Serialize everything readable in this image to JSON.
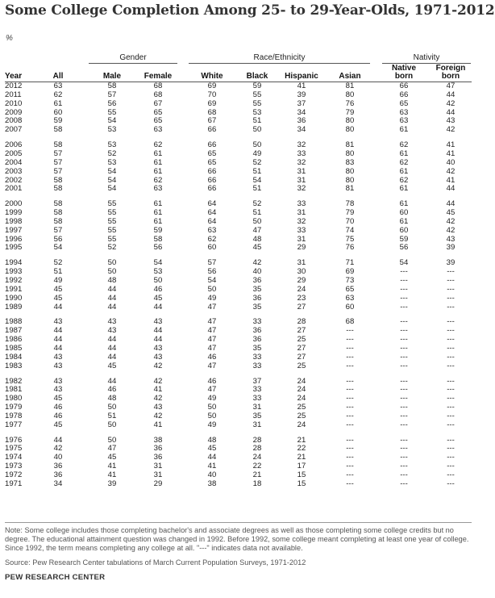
{
  "title": "Some College Completion Among 25- to 29-Year-Olds, 1971-2012",
  "unit": "%",
  "groups": {
    "gender": "Gender",
    "race": "Race/Ethnicity",
    "nativity": "Nativity"
  },
  "headers": {
    "year": "Year",
    "all": "All",
    "male": "Male",
    "female": "Female",
    "white": "White",
    "black": "Black",
    "hispanic": "Hispanic",
    "asian": "Asian",
    "native_line1": "Native",
    "native_line2": "born",
    "foreign_line1": "Foreign",
    "foreign_line2": "born"
  },
  "rows": [
    [
      "2012",
      "63",
      "58",
      "68",
      "69",
      "59",
      "41",
      "81",
      "66",
      "47"
    ],
    [
      "2011",
      "62",
      "57",
      "68",
      "70",
      "55",
      "39",
      "80",
      "66",
      "44"
    ],
    [
      "2010",
      "61",
      "56",
      "67",
      "69",
      "55",
      "37",
      "76",
      "65",
      "42"
    ],
    [
      "2009",
      "60",
      "55",
      "65",
      "68",
      "53",
      "34",
      "79",
      "63",
      "44"
    ],
    [
      "2008",
      "59",
      "54",
      "65",
      "67",
      "51",
      "36",
      "80",
      "63",
      "43"
    ],
    [
      "2007",
      "58",
      "53",
      "63",
      "66",
      "50",
      "34",
      "80",
      "61",
      "42"
    ],
    [
      "2006",
      "58",
      "53",
      "62",
      "66",
      "50",
      "32",
      "81",
      "62",
      "41"
    ],
    [
      "2005",
      "57",
      "52",
      "61",
      "65",
      "49",
      "33",
      "80",
      "61",
      "41"
    ],
    [
      "2004",
      "57",
      "53",
      "61",
      "65",
      "52",
      "32",
      "83",
      "62",
      "40"
    ],
    [
      "2003",
      "57",
      "54",
      "61",
      "66",
      "51",
      "31",
      "80",
      "61",
      "42"
    ],
    [
      "2002",
      "58",
      "54",
      "62",
      "66",
      "54",
      "31",
      "80",
      "62",
      "41"
    ],
    [
      "2001",
      "58",
      "54",
      "63",
      "66",
      "51",
      "32",
      "81",
      "61",
      "44"
    ],
    [
      "2000",
      "58",
      "55",
      "61",
      "64",
      "52",
      "33",
      "78",
      "61",
      "44"
    ],
    [
      "1999",
      "58",
      "55",
      "61",
      "64",
      "51",
      "31",
      "79",
      "60",
      "45"
    ],
    [
      "1998",
      "58",
      "55",
      "61",
      "64",
      "50",
      "32",
      "70",
      "61",
      "42"
    ],
    [
      "1997",
      "57",
      "55",
      "59",
      "63",
      "47",
      "33",
      "74",
      "60",
      "42"
    ],
    [
      "1996",
      "56",
      "55",
      "58",
      "62",
      "48",
      "31",
      "75",
      "59",
      "43"
    ],
    [
      "1995",
      "54",
      "52",
      "56",
      "60",
      "45",
      "29",
      "76",
      "56",
      "39"
    ],
    [
      "1994",
      "52",
      "50",
      "54",
      "57",
      "42",
      "31",
      "71",
      "54",
      "39"
    ],
    [
      "1993",
      "51",
      "50",
      "53",
      "56",
      "40",
      "30",
      "69",
      "---",
      "---"
    ],
    [
      "1992",
      "49",
      "48",
      "50",
      "54",
      "36",
      "29",
      "73",
      "---",
      "---"
    ],
    [
      "1991",
      "45",
      "44",
      "46",
      "50",
      "35",
      "24",
      "65",
      "---",
      "---"
    ],
    [
      "1990",
      "45",
      "44",
      "45",
      "49",
      "36",
      "23",
      "63",
      "---",
      "---"
    ],
    [
      "1989",
      "44",
      "44",
      "44",
      "47",
      "35",
      "27",
      "60",
      "---",
      "---"
    ],
    [
      "1988",
      "43",
      "43",
      "43",
      "47",
      "33",
      "28",
      "68",
      "---",
      "---"
    ],
    [
      "1987",
      "44",
      "43",
      "44",
      "47",
      "36",
      "27",
      "---",
      "---",
      "---"
    ],
    [
      "1986",
      "44",
      "44",
      "44",
      "47",
      "36",
      "25",
      "---",
      "---",
      "---"
    ],
    [
      "1985",
      "44",
      "44",
      "43",
      "47",
      "35",
      "27",
      "---",
      "---",
      "---"
    ],
    [
      "1984",
      "43",
      "44",
      "43",
      "46",
      "33",
      "27",
      "---",
      "---",
      "---"
    ],
    [
      "1983",
      "43",
      "45",
      "42",
      "47",
      "33",
      "25",
      "---",
      "---",
      "---"
    ],
    [
      "1982",
      "43",
      "44",
      "42",
      "46",
      "37",
      "24",
      "---",
      "---",
      "---"
    ],
    [
      "1981",
      "43",
      "46",
      "41",
      "47",
      "33",
      "24",
      "---",
      "---",
      "---"
    ],
    [
      "1980",
      "45",
      "48",
      "42",
      "49",
      "33",
      "24",
      "---",
      "---",
      "---"
    ],
    [
      "1979",
      "46",
      "50",
      "43",
      "50",
      "31",
      "25",
      "---",
      "---",
      "---"
    ],
    [
      "1978",
      "46",
      "51",
      "42",
      "50",
      "35",
      "25",
      "---",
      "---",
      "---"
    ],
    [
      "1977",
      "45",
      "50",
      "41",
      "49",
      "31",
      "24",
      "---",
      "---",
      "---"
    ],
    [
      "1976",
      "44",
      "50",
      "38",
      "48",
      "28",
      "21",
      "---",
      "---",
      "---"
    ],
    [
      "1975",
      "42",
      "47",
      "36",
      "45",
      "28",
      "22",
      "---",
      "---",
      "---"
    ],
    [
      "1974",
      "40",
      "45",
      "36",
      "44",
      "24",
      "21",
      "---",
      "---",
      "---"
    ],
    [
      "1973",
      "36",
      "41",
      "31",
      "41",
      "22",
      "17",
      "---",
      "---",
      "---"
    ],
    [
      "1972",
      "36",
      "41",
      "31",
      "40",
      "21",
      "15",
      "---",
      "---",
      "---"
    ],
    [
      "1971",
      "34",
      "39",
      "29",
      "38",
      "18",
      "15",
      "---",
      "---",
      "---"
    ]
  ],
  "note": "Note: Some college includes those completing bachelor's and associate degrees as well as those completing some college credits but no degree. The educational attainment question was changed in 1992. Before 1992, some college meant completing at least one year of college. Since 1992, the term means completing any college at all. \"---\" indicates data not available.",
  "source": "Source: Pew Research Center tabulations of March Current Population Surveys, 1971-2012",
  "org": "PEW RESEARCH CENTER"
}
